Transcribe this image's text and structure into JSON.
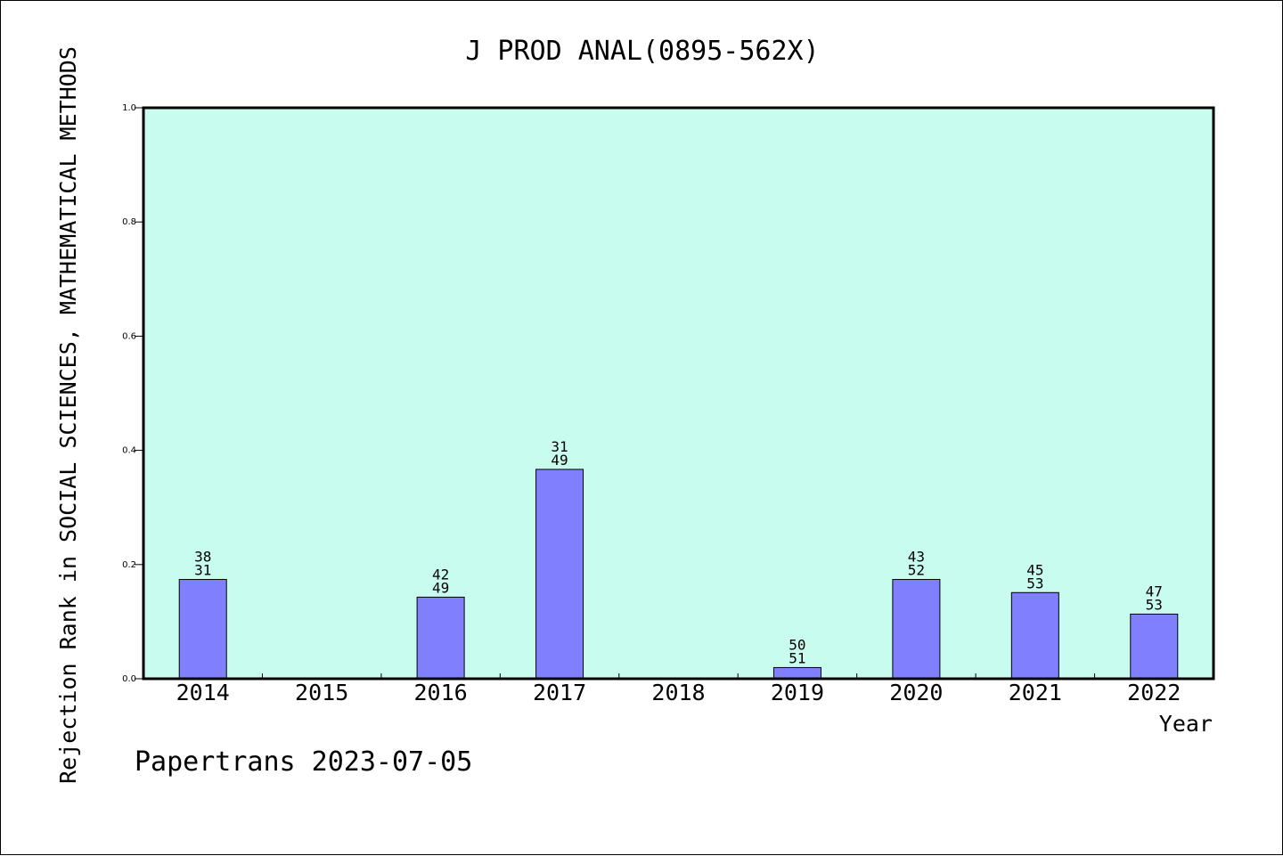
{
  "chart_data": {
    "type": "bar",
    "title": "J PROD ANAL(0895-562X)",
    "ylabel": "Rejection Rank in SOCIAL SCIENCES, MATHEMATICAL METHODS",
    "xlabel": "Year",
    "ylim": [
      0,
      1.0
    ],
    "yticks": [
      "0.0",
      "0.2",
      "0.4",
      "0.6",
      "0.8",
      "1.0"
    ],
    "categories": [
      "2014",
      "2015",
      "2016",
      "2017",
      "2018",
      "2019",
      "2020",
      "2021",
      "2022"
    ],
    "values": [
      0.1739,
      null,
      0.1429,
      0.3667,
      null,
      0.0196,
      0.1739,
      0.1509,
      0.1132
    ],
    "labels_top": [
      "38",
      "",
      "42",
      "31",
      "",
      "50",
      "43",
      "45",
      "47"
    ],
    "labels_bottom": [
      "31",
      "",
      "49",
      "49",
      "",
      "51",
      "52",
      "53",
      "53"
    ],
    "plot_background": "#c8fcee",
    "bar_color": "#8080ff",
    "grid": false
  },
  "footer": {
    "text": "Papertrans 2023-07-05"
  }
}
